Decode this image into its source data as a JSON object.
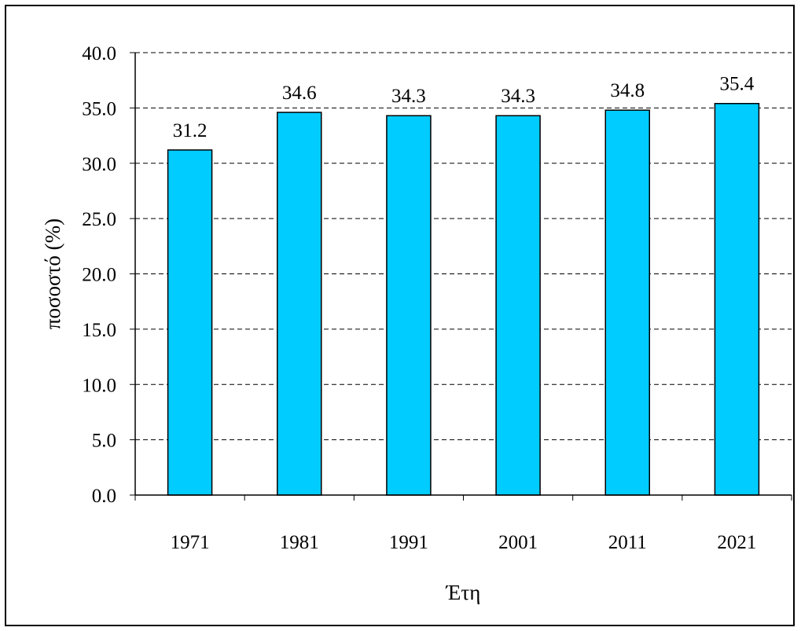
{
  "chart_data": {
    "type": "bar",
    "title": "",
    "xlabel": "Έτη",
    "ylabel": "ποσοστό (%)",
    "categories": [
      "1971",
      "1981",
      "1991",
      "2001",
      "2011",
      "2021"
    ],
    "values": [
      31.2,
      34.6,
      34.3,
      34.3,
      34.8,
      35.4
    ],
    "data_labels": [
      "31.2",
      "34.6",
      "34.3",
      "34.3",
      "34.8",
      "35.4"
    ],
    "ylim": [
      0,
      40
    ],
    "ytick_labels": [
      "0.0",
      "5.0",
      "10.0",
      "15.0",
      "20.0",
      "25.0",
      "30.0",
      "35.0",
      "40.0"
    ],
    "grid": "horizontal dashed",
    "legend": "none",
    "colors": {
      "bar": "#00CCFF",
      "bar_outline": "#000000",
      "grid": "#000000"
    }
  }
}
